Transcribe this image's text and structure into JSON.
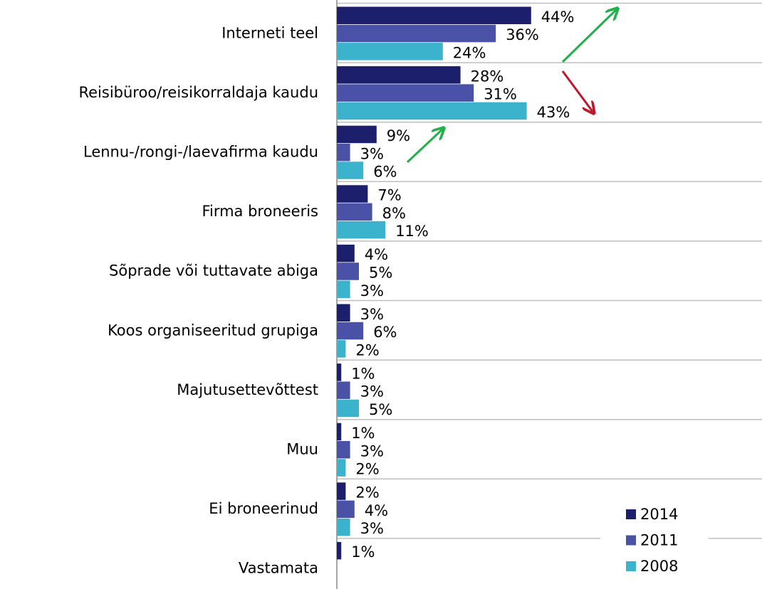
{
  "chart_data": {
    "type": "bar",
    "orientation": "horizontal",
    "categories": [
      "Interneti teel",
      "Reisibüroo/reisikorraldaja kaudu",
      "Lennu-/rongi-/laevafirma kaudu",
      "Firma broneeris",
      "Sõprade või tuttavate abiga",
      "Koos organiseeritud grupiga",
      "Majutusettevõttest",
      "Muu",
      "Ei broneerinud",
      "Vastamata"
    ],
    "series": [
      {
        "name": "2014",
        "color": "#1c1f6b",
        "values": [
          44,
          28,
          9,
          7,
          4,
          3,
          1,
          1,
          2,
          1
        ],
        "value_labels": [
          "44%",
          "28%",
          "9%",
          "7%",
          "4%",
          "3%",
          "1%",
          "1%",
          "2%",
          "1%"
        ]
      },
      {
        "name": "2011",
        "color": "#4a52a8",
        "values": [
          36,
          31,
          3,
          8,
          5,
          6,
          3,
          3,
          4,
          null
        ],
        "value_labels": [
          "36%",
          "31%",
          "3%",
          "8%",
          "5%",
          "6%",
          "3%",
          "3%",
          "4%",
          null
        ]
      },
      {
        "name": "2008",
        "color": "#3bb3cc",
        "values": [
          24,
          43,
          6,
          11,
          3,
          2,
          5,
          2,
          3,
          null
        ],
        "value_labels": [
          "24%",
          "43%",
          "6%",
          "11%",
          "3%",
          "2%",
          "5%",
          "2%",
          "3%",
          null
        ]
      }
    ],
    "grid": true,
    "legend": "lower right"
  }
}
